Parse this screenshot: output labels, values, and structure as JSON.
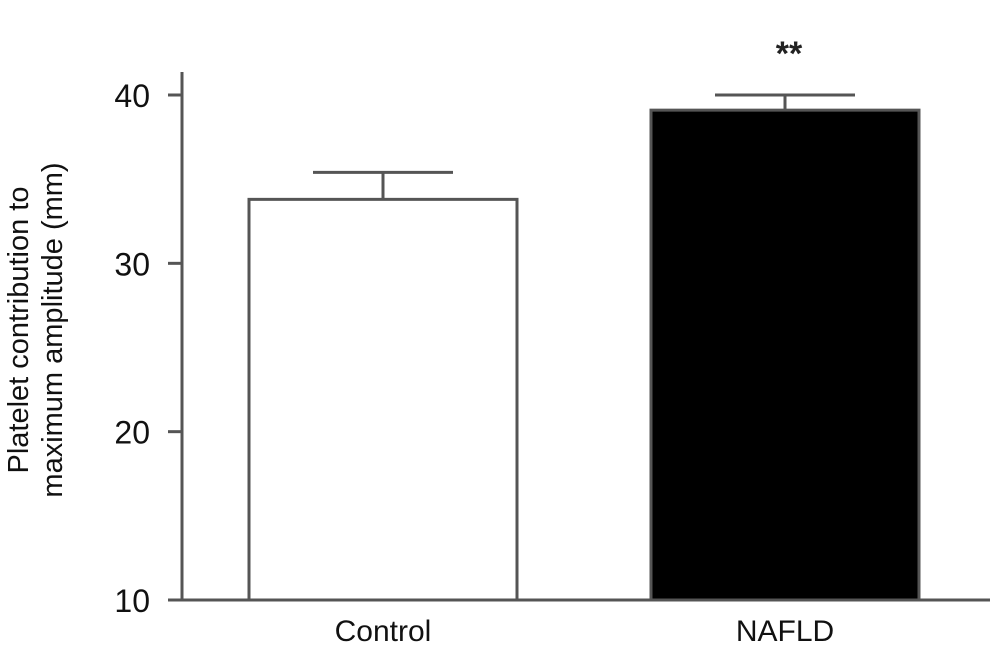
{
  "chart_data": {
    "type": "bar",
    "title": "",
    "categories": [
      "Control",
      "NAFLD"
    ],
    "values": [
      33.8,
      39.1
    ],
    "errors": [
      1.6,
      0.9
    ],
    "colors": [
      "#ffffff",
      "#000000"
    ],
    "edge_color": "#555555",
    "ylabel_lines": [
      "Platelet contribution to",
      "maximum amplitude (mm)"
    ],
    "ylim": [
      10,
      40
    ],
    "yticks": [
      10,
      20,
      30,
      40
    ],
    "annotations": [
      {
        "category": "NAFLD",
        "text": "**"
      }
    ]
  }
}
